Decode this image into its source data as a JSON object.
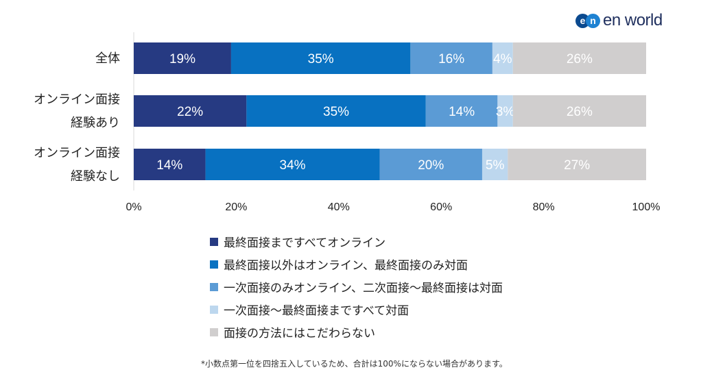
{
  "logo": {
    "mark_e": "e",
    "mark_n": "n",
    "wordmark": "en world"
  },
  "footnote": "*小数点第一位を四捨五入しているため、合計は100%にならない場合があります。",
  "chart_data": {
    "type": "bar",
    "orientation": "horizontal",
    "stacked": true,
    "categories": [
      [
        "全体"
      ],
      [
        "オンライン面接",
        "経験あり"
      ],
      [
        "オンライン面接",
        "経験なし"
      ]
    ],
    "series": [
      {
        "name": "最終面接まですべてオンライン",
        "color": "#263a82",
        "values": [
          19,
          22,
          14
        ],
        "labels": [
          "19%",
          "22%",
          "14%"
        ]
      },
      {
        "name": "最終面接以外はオンライン、最終面接のみ対面",
        "color": "#0871c1",
        "values": [
          35,
          35,
          34
        ],
        "labels": [
          "35%",
          "35%",
          "34%"
        ]
      },
      {
        "name": "一次面接のみオンライン、二次面接～最終面接は対面",
        "color": "#5b9bd5",
        "values": [
          16,
          14,
          20
        ],
        "labels": [
          "16%",
          "14%",
          "20%"
        ]
      },
      {
        "name": "一次面接～最終面接まですべて対面",
        "color": "#bdd7ee",
        "values": [
          4,
          3,
          5
        ],
        "labels": [
          "4%",
          "3%",
          "5%"
        ]
      },
      {
        "name": "面接の方法にはこだわらない",
        "color": "#d0cece",
        "values": [
          26,
          26,
          27
        ],
        "labels": [
          "26%",
          "26%",
          "27%"
        ]
      }
    ],
    "xlim": [
      0,
      100
    ],
    "xticks": [
      "0%",
      "20%",
      "40%",
      "60%",
      "80%",
      "100%"
    ],
    "grid": false,
    "legend_position": "bottom"
  }
}
